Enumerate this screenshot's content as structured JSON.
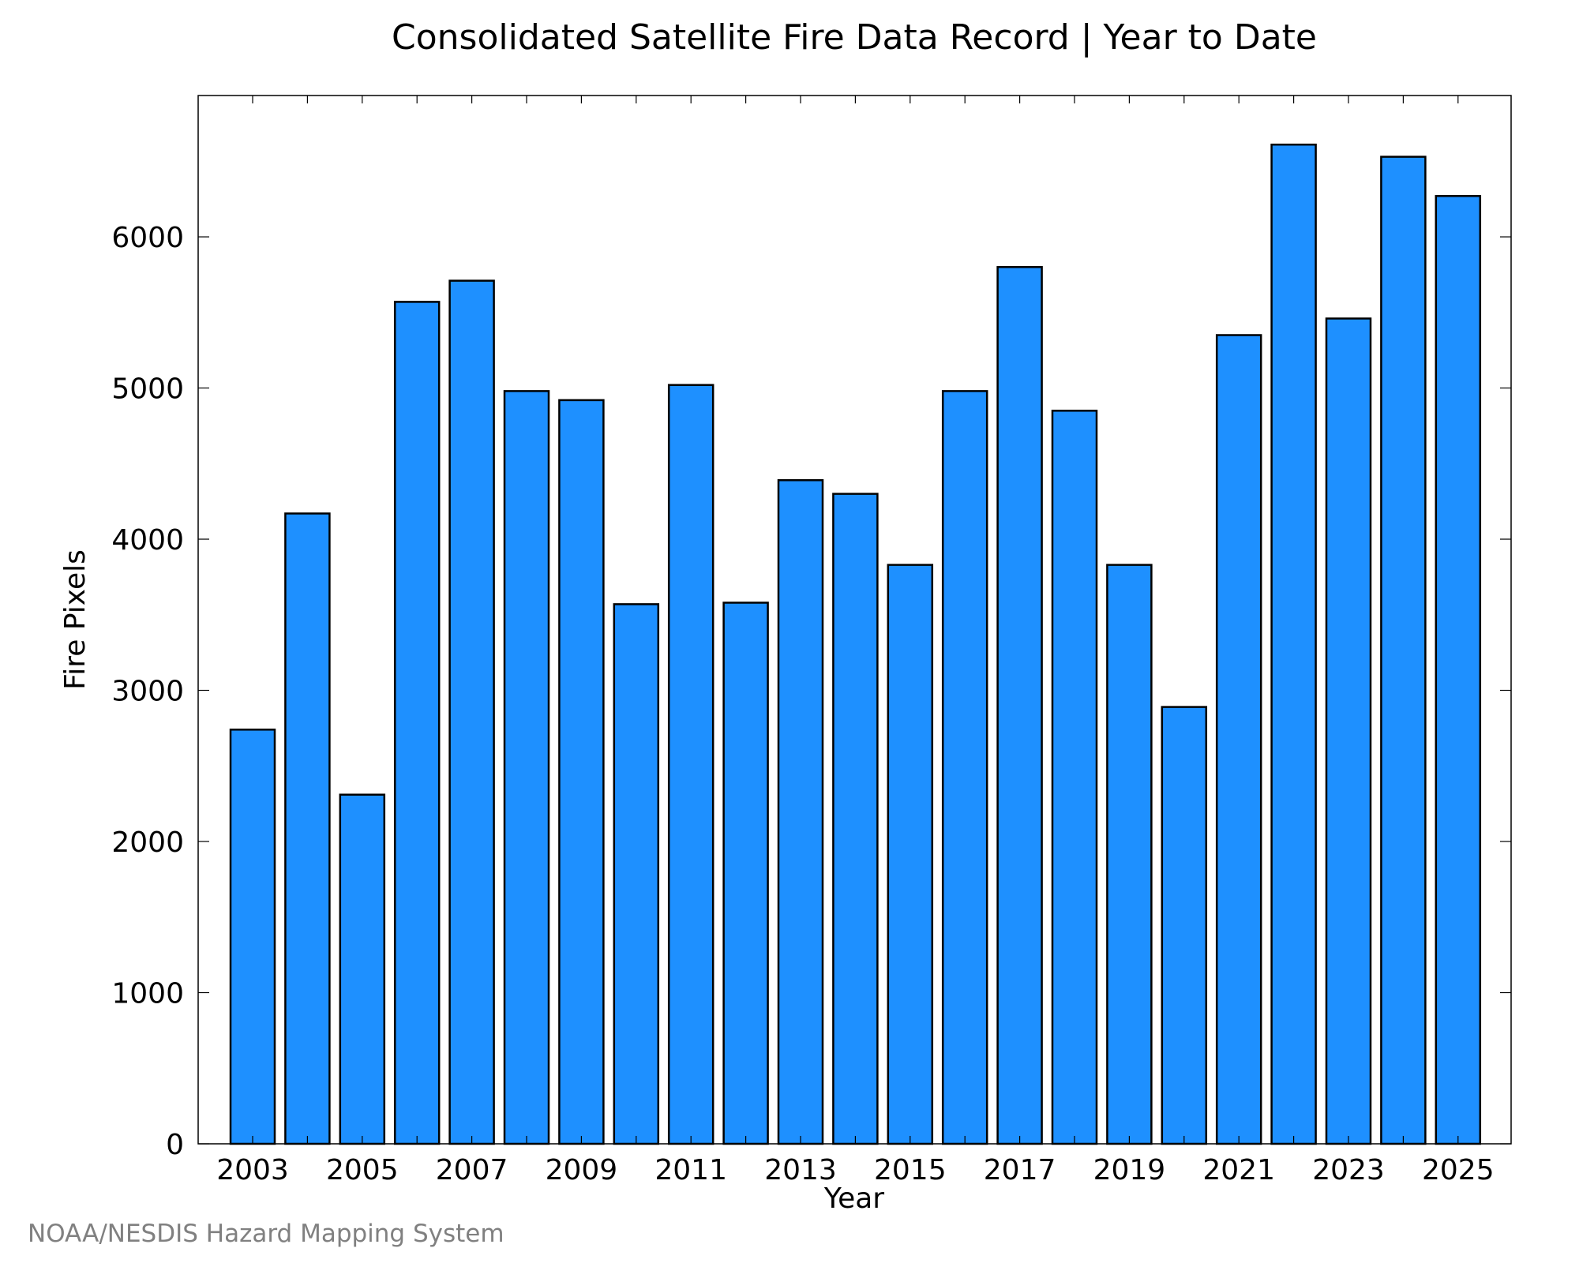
{
  "chart_data": {
    "type": "bar",
    "title": "Consolidated Satellite Fire Data Record | Year to Date",
    "xlabel": "Year",
    "ylabel": "Fire Pixels",
    "categories": [
      "2003",
      "2004",
      "2005",
      "2006",
      "2007",
      "2008",
      "2009",
      "2010",
      "2011",
      "2012",
      "2013",
      "2014",
      "2015",
      "2016",
      "2017",
      "2018",
      "2019",
      "2020",
      "2021",
      "2022",
      "2023",
      "2024",
      "2025"
    ],
    "values": [
      2740,
      4170,
      2310,
      5570,
      5710,
      4980,
      4920,
      3570,
      5020,
      3580,
      4390,
      4300,
      3830,
      4980,
      5800,
      4850,
      3830,
      2890,
      5350,
      6610,
      5460,
      6530,
      6270
    ],
    "x_tick_labels": [
      "2003",
      "2005",
      "2007",
      "2009",
      "2011",
      "2013",
      "2015",
      "2017",
      "2019",
      "2021",
      "2023",
      "2025"
    ],
    "y_ticks": [
      0,
      1000,
      2000,
      3000,
      4000,
      5000,
      6000
    ],
    "ylim": [
      0,
      6935
    ],
    "grid": false,
    "legend": "none",
    "bar_color": "#1e90ff",
    "edge_color": "#000000"
  },
  "credit": "NOAA/NESDIS Hazard Mapping System"
}
